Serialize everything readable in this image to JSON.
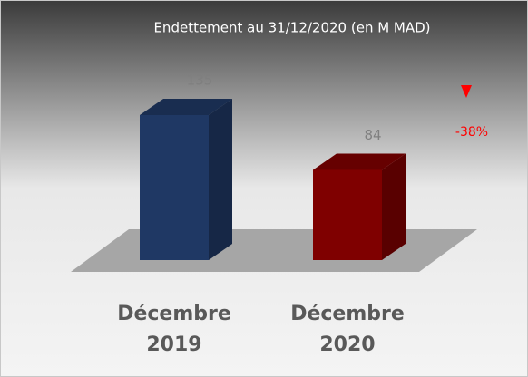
{
  "chart_data": {
    "type": "bar3d",
    "title": "Endettement au 31/12/2020 (en M MAD)",
    "categories": [
      "Décembre 2019",
      "Décembre 2020"
    ],
    "values": [
      135,
      84
    ],
    "colors": [
      "#1f3864",
      "#7f0000"
    ],
    "annotation": "-38%"
  }
}
